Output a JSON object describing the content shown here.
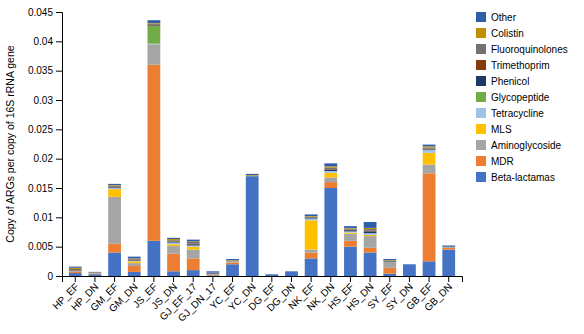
{
  "chart_data": {
    "type": "bar",
    "stacked": true,
    "grid": false,
    "legend": "right",
    "ylabel": "Copy of ARGs per copy of 16S rRNA gene",
    "categories": [
      "HP_EF",
      "HP_DN",
      "GM_EF",
      "GM_DN",
      "JS_EF",
      "JS_DN",
      "GJ_EF_17",
      "GJ_DN_17",
      "YC_EF",
      "YC_DN",
      "DG_EF",
      "DG_DN",
      "NK_EF",
      "NK_DN",
      "HS_EF",
      "HS_DN",
      "SY_EF",
      "SY_DN",
      "GB_EF",
      "GB_DN"
    ],
    "series": [
      {
        "name": "Beta-lactamas",
        "color": "#4472C4",
        "values": [
          0.0005,
          0.0003,
          0.004,
          0.0007,
          0.006,
          0.0008,
          0.001,
          0.0001,
          0.002,
          0.017,
          0.0002,
          0.0007,
          0.003,
          0.015,
          0.005,
          0.004,
          0.0004,
          0.002,
          0.0025,
          0.0045
        ]
      },
      {
        "name": "MDR",
        "color": "#ED7D31",
        "values": [
          0.0002,
          0.0001,
          0.0015,
          0.001,
          0.03,
          0.003,
          0.002,
          0.0001,
          0.0003,
          0.0,
          0.0,
          0.0,
          0.001,
          0.001,
          0.001,
          0.0008,
          0.001,
          0.0,
          0.015,
          0.0003
        ]
      },
      {
        "name": "Aminoglycoside",
        "color": "#A5A5A5",
        "values": [
          0.0002,
          0.0001,
          0.008,
          0.0005,
          0.0035,
          0.0013,
          0.0015,
          0.0002,
          0.0002,
          0.0,
          0.0,
          0.0,
          0.0005,
          0.0008,
          0.0012,
          0.002,
          0.001,
          0.0,
          0.0015,
          0.0001
        ]
      },
      {
        "name": "MLS",
        "color": "#FFC000",
        "values": [
          0.0,
          0.0,
          0.0013,
          0.0003,
          0.0,
          0.0003,
          0.0005,
          0.0,
          0.0,
          0.0,
          0.0,
          0.0,
          0.005,
          0.0008,
          0.0002,
          0.0002,
          0.0,
          0.0,
          0.002,
          0.0
        ]
      },
      {
        "name": "Tetracycline",
        "color": "#9DC3E6",
        "values": [
          0.0,
          0.0,
          0.0002,
          0.0001,
          0.0001,
          0.0003,
          0.0002,
          0.0,
          0.0,
          0.0,
          0.0,
          0.0,
          0.0003,
          0.0003,
          0.0002,
          0.0003,
          0.0,
          0.0,
          0.0005,
          0.0
        ]
      },
      {
        "name": "Glycopeptide",
        "color": "#70AD47",
        "values": [
          0.0,
          0.0,
          0.0,
          0.0,
          0.003,
          0.0,
          0.0,
          0.0,
          0.0,
          0.0,
          0.0,
          0.0,
          0.0,
          0.0,
          0.0,
          0.0,
          0.0,
          0.0,
          0.0,
          0.0
        ]
      },
      {
        "name": "Phenicol",
        "color": "#1F3864",
        "values": [
          0.0,
          0.0,
          0.0001,
          0.0001,
          0.0001,
          0.0001,
          0.0002,
          0.0001,
          0.0,
          0.0,
          0.0,
          0.0,
          0.0001,
          0.0002,
          0.0002,
          0.0003,
          0.0001,
          0.0,
          0.0001,
          0.0
        ]
      },
      {
        "name": "Trimethoprim",
        "color": "#843C0C",
        "values": [
          0.0001,
          0.0,
          0.0001,
          0.0001,
          0.0001,
          0.0001,
          0.0001,
          0.0,
          0.0,
          0.0,
          0.0,
          0.0,
          0.0001,
          0.0001,
          0.0001,
          0.0001,
          0.0,
          0.0,
          0.0001,
          0.0
        ]
      },
      {
        "name": "Fluoroquinolones",
        "color": "#757171",
        "values": [
          0.0002,
          0.0,
          0.0002,
          0.0001,
          0.0002,
          0.0002,
          0.0003,
          0.0001,
          0.0001,
          0.0001,
          0.0,
          0.0,
          0.0001,
          0.0003,
          0.0002,
          0.0003,
          0.0001,
          0.0,
          0.0002,
          0.0001
        ]
      },
      {
        "name": "Colistin",
        "color": "#BF8F00",
        "values": [
          0.0002,
          0.0001,
          0.0001,
          0.0001,
          0.0001,
          0.0002,
          0.0001,
          0.0,
          0.0001,
          0.0001,
          0.0,
          0.0,
          0.0001,
          0.0002,
          0.0001,
          0.0002,
          0.0001,
          0.0,
          0.0002,
          0.0
        ]
      },
      {
        "name": "Other",
        "color": "#2E5EAA",
        "values": [
          0.0002,
          0.0001,
          0.0002,
          0.0003,
          0.0005,
          0.0002,
          0.0003,
          0.0002,
          0.0002,
          0.0002,
          0.0001,
          0.0001,
          0.0003,
          0.0005,
          0.0003,
          0.001,
          0.0002,
          0.0,
          0.0003,
          0.0002
        ]
      }
    ],
    "ylim": [
      0,
      0.045
    ],
    "yticks": [
      0,
      0.005,
      0.01,
      0.015,
      0.02,
      0.025,
      0.03,
      0.035,
      0.04,
      0.045
    ]
  }
}
